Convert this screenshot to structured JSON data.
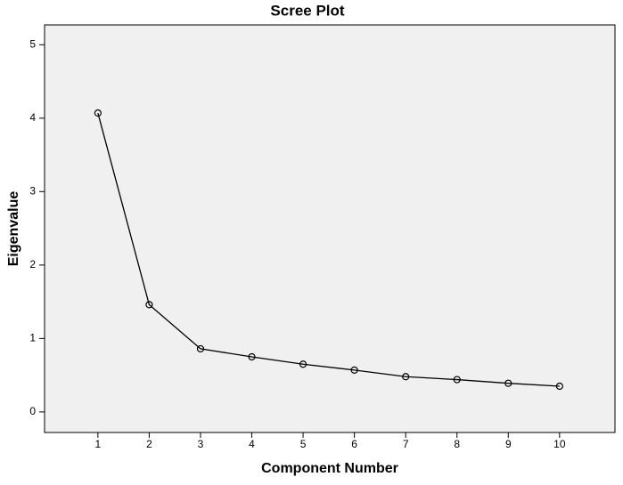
{
  "chart_data": {
    "type": "line",
    "title": "Scree Plot",
    "x_label": "Component Number",
    "y_label": "Eigenvalue",
    "x": [
      1,
      2,
      3,
      4,
      5,
      6,
      7,
      8,
      9,
      10
    ],
    "values": [
      4.07,
      1.46,
      0.86,
      0.75,
      0.65,
      0.57,
      0.48,
      0.44,
      0.39,
      0.35
    ],
    "color": "#000000",
    "marker": "circle",
    "xlim": [
      -0.04,
      11.08
    ],
    "xticks": [
      1,
      2,
      3,
      4,
      5,
      6,
      7,
      8,
      9,
      10
    ],
    "ylim": [
      -0.28,
      5.27
    ],
    "yticks": [
      0,
      1,
      2,
      3,
      4,
      5
    ],
    "grid": false
  }
}
